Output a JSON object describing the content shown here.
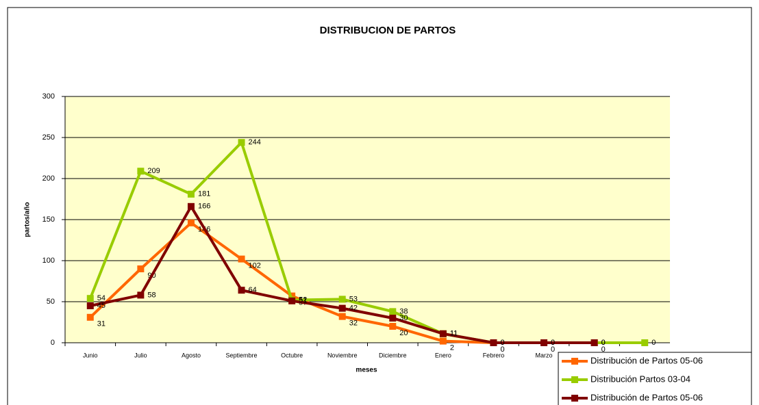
{
  "chart_data": {
    "type": "line",
    "title": "DISTRIBUCION DE PARTOS",
    "x_label": "meses",
    "y_label": "partos/año",
    "categories": [
      "Junio",
      "Julio",
      "Agosto",
      "Septiembre",
      "Octubre",
      "Noviembre",
      "Diciembre",
      "Enero",
      "Febrero",
      "Marzo",
      null,
      null
    ],
    "series": [
      {
        "name": "Distribución de Partos 05-06",
        "color": "#ff6600",
        "values": [
          31,
          90,
          146,
          102,
          57,
          32,
          20,
          2,
          0,
          0,
          0,
          null
        ]
      },
      {
        "name": "Distribución Partos 03-04",
        "color": "#99cc00",
        "values": [
          54,
          209,
          181,
          244,
          52,
          53,
          38,
          11,
          0,
          0,
          0,
          0
        ]
      },
      {
        "name": "Distribución de Partos 05-06",
        "color": "#800000",
        "values": [
          45,
          58,
          166,
          64,
          51,
          42,
          30,
          11,
          0,
          0,
          0,
          null
        ]
      }
    ],
    "ylim": [
      0,
      300
    ],
    "yticks": [
      0,
      50,
      100,
      150,
      200,
      250,
      300
    ],
    "grid": true
  }
}
